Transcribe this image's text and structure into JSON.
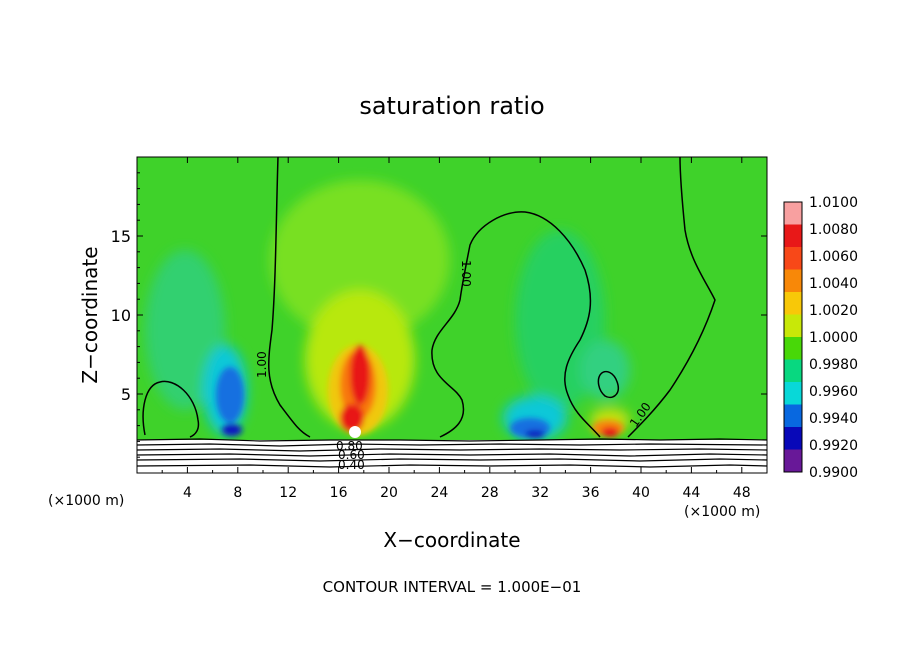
{
  "chart_data": {
    "type": "heatmap",
    "title": "saturation ratio",
    "xlabel": "X−coordinate",
    "ylabel": "Z−coordinate",
    "x_unit_left": "(×1000 m)",
    "x_unit_right": "(×1000 m)",
    "footer": "CONTOUR INTERVAL = 1.000E−01",
    "xlim": [
      0,
      50
    ],
    "ylim": [
      0,
      20
    ],
    "x_ticks": [
      4,
      8,
      12,
      16,
      20,
      24,
      28,
      32,
      36,
      40,
      44,
      48
    ],
    "y_ticks": [
      5,
      10,
      15
    ],
    "x_tick_labels": [
      "4",
      "8",
      "12",
      "16",
      "20",
      "24",
      "28",
      "32",
      "36",
      "40",
      "44",
      "48"
    ],
    "y_tick_labels": [
      "5",
      "10",
      "15"
    ],
    "colorbar": {
      "levels": [
        "1.0100",
        "1.0080",
        "1.0060",
        "1.0040",
        "1.0020",
        "1.0000",
        "0.9980",
        "0.9960",
        "0.9940",
        "0.9920",
        "0.9900"
      ],
      "colors": [
        "#f8a0a0",
        "#e81818",
        "#f84818",
        "#f88808",
        "#f8c808",
        "#c8e808",
        "#48d808",
        "#08d880",
        "#08d8d8",
        "#0868e0",
        "#0808b8",
        "#681898"
      ]
    },
    "contour_labels": [
      "1.00",
      "1.00",
      "1.00",
      "0.80",
      "0.60",
      "0.40"
    ],
    "ground_top_km": 2.3
  }
}
